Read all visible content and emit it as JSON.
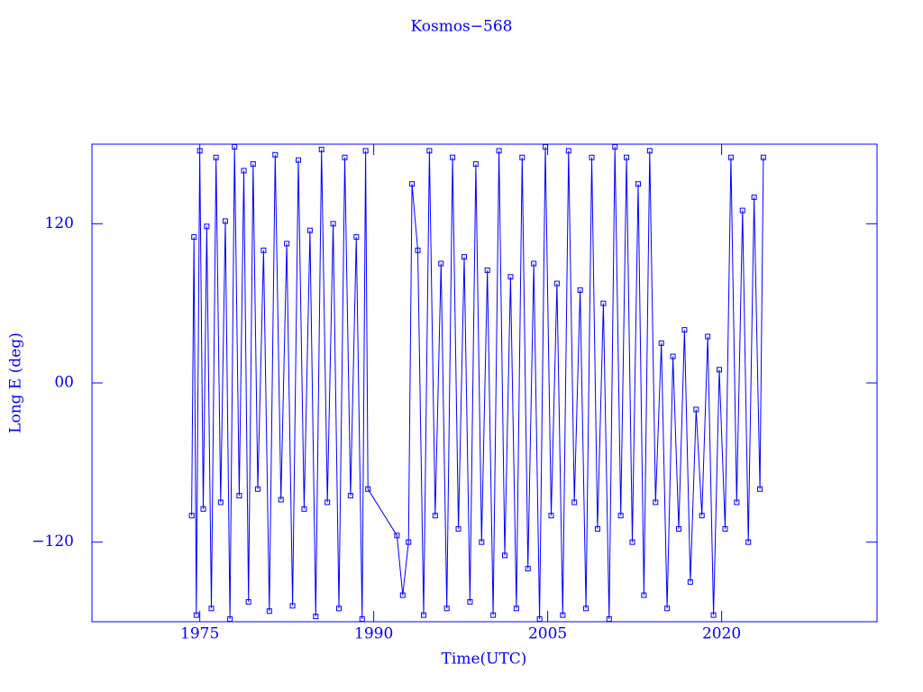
{
  "chart_data": {
    "type": "line",
    "title": "Kosmos−568",
    "x_label": "Time(UTC)",
    "y_label": "Long E (deg)",
    "xlim": [
      1965.7,
      2033.4
    ],
    "ylim": [
      -180,
      180
    ],
    "xticks": [
      1975,
      1990,
      2005,
      2020
    ],
    "yticks": [
      {
        "value": -120,
        "label": "−120"
      },
      {
        "value": 0,
        "label": "00"
      },
      120
    ],
    "x": [
      1974.3,
      1974.5,
      1974.7,
      1975.0,
      1975.3,
      1975.6,
      1976.0,
      1976.4,
      1976.8,
      1977.2,
      1977.6,
      1978.0,
      1978.4,
      1978.8,
      1979.2,
      1979.6,
      1980.0,
      1980.5,
      1981.0,
      1981.5,
      1982.0,
      1982.5,
      1983.0,
      1983.5,
      1984.0,
      1984.5,
      1985.0,
      1985.5,
      1986.0,
      1986.5,
      1987.0,
      1987.5,
      1988.0,
      1988.5,
      1989.0,
      1989.3,
      1989.5,
      1992.0,
      1992.5,
      1993.0,
      1993.3,
      1993.8,
      1994.3,
      1994.8,
      1995.3,
      1995.8,
      1996.3,
      1996.8,
      1997.3,
      1997.8,
      1998.3,
      1998.8,
      1999.3,
      1999.8,
      2000.3,
      2000.8,
      2001.3,
      2001.8,
      2002.3,
      2002.8,
      2003.3,
      2003.8,
      2004.3,
      2004.8,
      2005.3,
      2005.8,
      2006.3,
      2006.8,
      2007.3,
      2007.8,
      2008.3,
      2008.8,
      2009.3,
      2009.8,
      2010.3,
      2010.8,
      2011.3,
      2011.8,
      2012.3,
      2012.8,
      2013.3,
      2013.8,
      2014.3,
      2014.8,
      2015.3,
      2015.8,
      2016.3,
      2016.8,
      2017.3,
      2017.8,
      2018.3,
      2018.8,
      2019.3,
      2019.8,
      2020.3,
      2020.8,
      2021.3,
      2021.8,
      2022.3,
      2022.8,
      2023.3,
      2023.6
    ],
    "series": [
      {
        "color": "#0000ff",
        "values": [
          -100,
          110,
          -175,
          175,
          -95,
          118,
          -170,
          170,
          -90,
          122,
          -178,
          178,
          -85,
          160,
          -165,
          165,
          -80,
          100,
          -172,
          172,
          -88,
          105,
          -168,
          168,
          -95,
          115,
          -176,
          176,
          -90,
          120,
          -170,
          170,
          -85,
          110,
          -178,
          175,
          -80,
          -115,
          -160,
          -120,
          150,
          100,
          -175,
          175,
          -100,
          90,
          -170,
          170,
          -110,
          95,
          -165,
          165,
          -120,
          85,
          -175,
          175,
          -130,
          80,
          -170,
          170,
          -140,
          90,
          -178,
          178,
          -100,
          75,
          -175,
          175,
          -90,
          70,
          -170,
          170,
          -110,
          60,
          -178,
          178,
          -100,
          170,
          -120,
          150,
          -160,
          175,
          -90,
          30,
          -170,
          20,
          -110,
          40,
          -150,
          -20,
          -100,
          35,
          -175,
          10,
          -110,
          170,
          -90,
          130,
          -120,
          140,
          -80,
          170
        ]
      }
    ]
  }
}
